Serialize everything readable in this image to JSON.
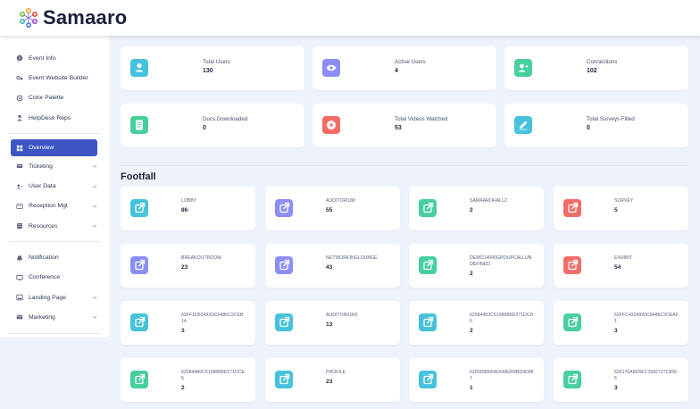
{
  "brand": {
    "name": "Samaaro"
  },
  "colors": {
    "accent": "#3d56c4",
    "teal": "#46c2dc",
    "purple": "#8b8ef4",
    "green": "#47cf9c",
    "red": "#f46c66"
  },
  "sidebar": {
    "group1": [
      {
        "label": "Event Info",
        "icon": "info-icon"
      },
      {
        "label": "Event Website Builder",
        "icon": "builder-icon"
      },
      {
        "label": "Color Palette",
        "icon": "palette-icon"
      },
      {
        "label": "HelpDesk Reps",
        "icon": "person-icon"
      }
    ],
    "group2": [
      {
        "label": "Overview",
        "icon": "grid-icon",
        "active": true
      },
      {
        "label": "Ticketing",
        "icon": "ticket-icon",
        "chevron": true
      },
      {
        "label": "User Data",
        "icon": "users-icon",
        "chevron": true
      },
      {
        "label": "Reception Mgt",
        "icon": "reception-icon",
        "chevron": true
      },
      {
        "label": "Resources",
        "icon": "resources-icon",
        "chevron": true
      }
    ],
    "group3": [
      {
        "label": "Notification",
        "icon": "bell-icon"
      },
      {
        "label": "Conference",
        "icon": "conference-icon"
      },
      {
        "label": "Landing Page",
        "icon": "landing-icon",
        "chevron": true
      },
      {
        "label": "Marketing",
        "icon": "marketing-icon",
        "chevron": true
      }
    ]
  },
  "stats": [
    {
      "label": "Total Users",
      "value": "130",
      "color": "#46c2dc",
      "icon": "user-icon"
    },
    {
      "label": "Active Users",
      "value": "4",
      "color": "#8b8ef4",
      "icon": "eye-icon"
    },
    {
      "label": "Connections",
      "value": "102",
      "color": "#47cf9c",
      "icon": "connection-icon"
    },
    {
      "label": "Docs Downloaded",
      "value": "0",
      "color": "#47cf9c",
      "icon": "document-icon"
    },
    {
      "label": "Total Videos Watched",
      "value": "53",
      "color": "#f46c66",
      "icon": "play-icon"
    },
    {
      "label": "Total Surveys Filled",
      "value": "0",
      "color": "#46c2dc",
      "icon": "pencil-icon"
    }
  ],
  "footfall": {
    "title": "Footfall",
    "items": [
      {
        "label": "LOBBY",
        "value": "86",
        "color": "#46c2dc"
      },
      {
        "label": "AUDITORIUM",
        "value": "55",
        "color": "#8b8ef4"
      },
      {
        "label": "SAMAAROHALL2",
        "value": "2",
        "color": "#47cf9c"
      },
      {
        "label": "SURVEY",
        "value": "5",
        "color": "#f46c66"
      },
      {
        "label": "BREAKOUTROOM",
        "value": "23",
        "color": "#8b8ef4"
      },
      {
        "label": "NETWORKINGLOUNGE",
        "value": "43",
        "color": "#8b8ef4"
      },
      {
        "label": "DEMO14040GROUPCALLUNDEFINED",
        "value": "2",
        "color": "#47cf9c"
      },
      {
        "label": "EXHIBIT",
        "value": "54",
        "color": "#f46c66"
      },
      {
        "label": "62FF1D53492DC9486C2CEB14",
        "value": "3",
        "color": "#46c2dc"
      },
      {
        "label": "AUDITORIUM2",
        "value": "13",
        "color": "#46c2dc"
      },
      {
        "label": "62584482C51086B8D271DCD6",
        "value": "2",
        "color": "#46c2dc"
      },
      {
        "label": "62FFC4324920C9486C2CEAF1",
        "value": "3",
        "color": "#47cf9c"
      },
      {
        "label": "62584480C51086B8D271DCE5",
        "value": "2",
        "color": "#47cf9c"
      },
      {
        "label": "PROFILE",
        "value": "23",
        "color": "#46c2dc"
      },
      {
        "label": "6260D8805AD94A269BD9D887",
        "value": "1",
        "color": "#46c2dc"
      },
      {
        "label": "626170A8D5EC2582727C8566",
        "value": "3",
        "color": "#47cf9c"
      }
    ]
  }
}
